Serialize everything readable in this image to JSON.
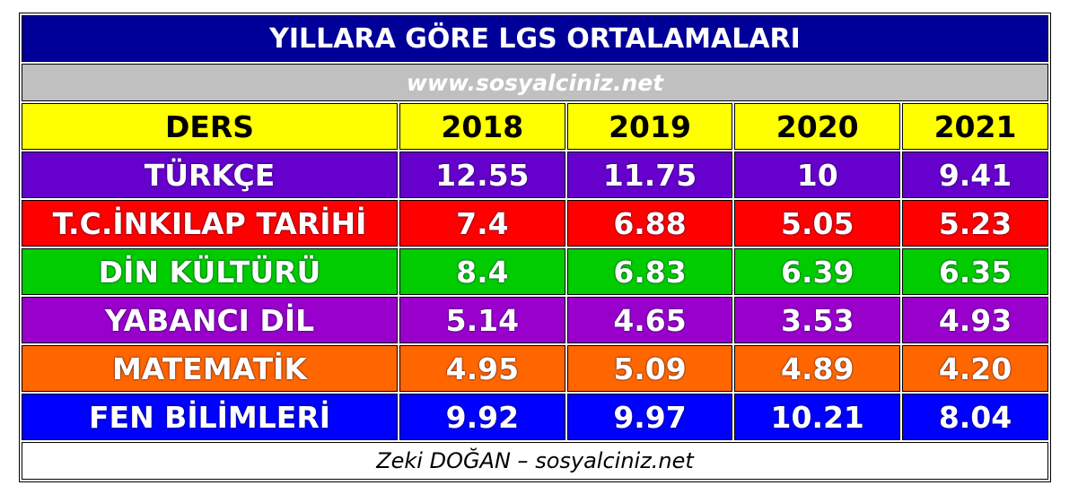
{
  "title": "YILLARA GÖRE LGS ORTALAMALARI",
  "website": "www.sosyalciniz.net",
  "headers": [
    "DERS",
    "2018",
    "2019",
    "2020",
    "2021"
  ],
  "rows": [
    {
      "ders": "TÜRKÇE",
      "values": [
        "12.55",
        "11.75",
        "10",
        "9.41"
      ],
      "color": "#6600cc"
    },
    {
      "ders": "T.C.İNKILAP TARİHİ",
      "values": [
        "7.4",
        "6.88",
        "5.05",
        "5.23"
      ],
      "color": "#ff0000"
    },
    {
      "ders": "DİN KÜLTÜRÜ",
      "values": [
        "8.4",
        "6.83",
        "6.39",
        "6.35"
      ],
      "color": "#00cc00"
    },
    {
      "ders": "YABANCI DİL",
      "values": [
        "5.14",
        "4.65",
        "3.53",
        "4.93"
      ],
      "color": "#9900cc"
    },
    {
      "ders": "MATEMATİK",
      "values": [
        "4.95",
        "5.09",
        "4.89",
        "4.20"
      ],
      "color": "#ff6600"
    },
    {
      "ders": "FEN BİLİMLERİ",
      "values": [
        "9.92",
        "9.97",
        "10.21",
        "8.04"
      ],
      "color": "#0000ff"
    }
  ],
  "footer": "Zeki DOĞAN – sosyalciniz.net"
}
